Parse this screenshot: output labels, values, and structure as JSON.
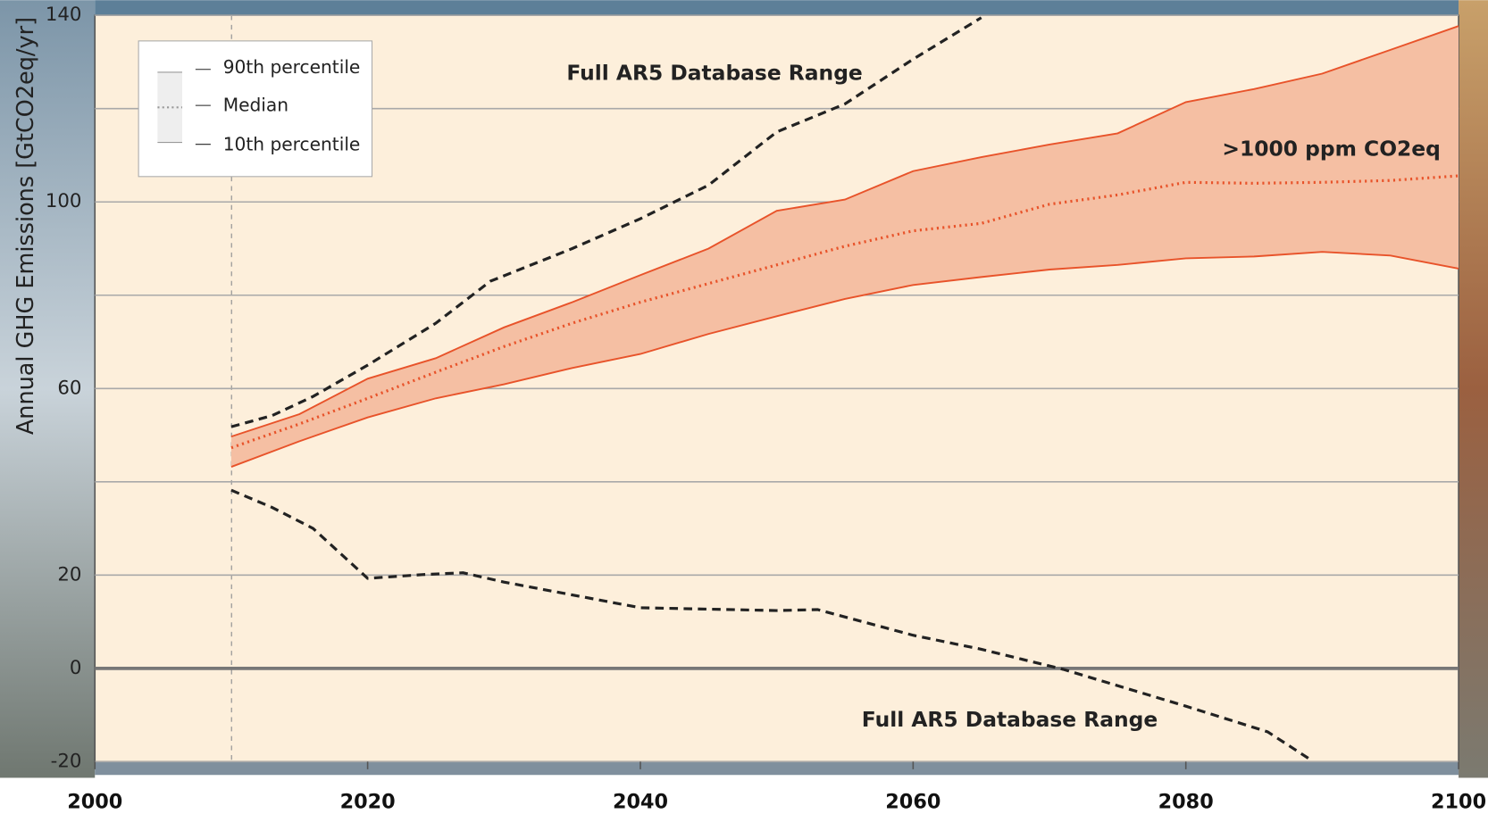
{
  "chart_data": {
    "type": "band",
    "y_label": "Annual GHG Emissions [GtCO2eq/yr]",
    "annotations": [
      "Full AR5 Database Range",
      ">1000 ppm CO2eq",
      "Full AR5 Database Range"
    ],
    "xlim": [
      2000,
      2100
    ],
    "xticks": [
      2000,
      2020,
      2040,
      2060,
      2080,
      2100
    ],
    "ylim": [
      -20,
      140
    ],
    "yticks": [
      -20,
      0,
      20,
      {
        "value": 40,
        "label": null
      },
      60,
      {
        "value": 80,
        "label": null
      },
      100,
      {
        "value": 120,
        "label": null
      },
      140
    ],
    "grid": true,
    "band_color": "#f5bfa3",
    "x": [
      2010,
      2015,
      2020,
      2025,
      2030,
      2035,
      2040,
      2045,
      2050,
      2055,
      2060,
      2065,
      2070,
      2075,
      2080,
      2085,
      2090,
      2095,
      2100
    ],
    "series": [
      {
        "name": "90th percentile",
        "color": "#e8532a",
        "style": "solid",
        "values": [
          49.7,
          54.5,
          62.1,
          66.5,
          73.1,
          78.5,
          84.3,
          90,
          98.1,
          100.5,
          106.6,
          109.6,
          112.3,
          114.7,
          121.4,
          124.2,
          127.5,
          132.6,
          137.7
        ]
      },
      {
        "name": "Median",
        "color": "#e8532a",
        "style": "dotted",
        "values": [
          47.3,
          52.4,
          57.9,
          63.5,
          69,
          74,
          78.5,
          82.5,
          86.5,
          90.5,
          93.8,
          95.4,
          99.5,
          101.5,
          104.2,
          104,
          104.2,
          104.6,
          105.6
        ]
      },
      {
        "name": "10th percentile",
        "color": "#e8532a",
        "style": "solid",
        "values": [
          43.2,
          48.7,
          53.8,
          57.9,
          60.9,
          64.4,
          67.4,
          71.7,
          75.5,
          79.2,
          82.2,
          83.9,
          85.5,
          86.5,
          87.9,
          88.3,
          89.3,
          88.5,
          85.7
        ]
      }
    ],
    "database_range": {
      "color": "#222222",
      "upper": {
        "x": [
          2010,
          2013,
          2016,
          2020,
          2025,
          2029,
          2035,
          2040,
          2045,
          2050,
          2055,
          2060,
          2065
        ],
        "values": [
          51.8,
          54.2,
          58.3,
          65,
          74,
          83,
          90,
          96.4,
          103.6,
          115,
          121,
          130.6,
          139.5
        ]
      },
      "lower": {
        "x": [
          2010,
          2013,
          2016,
          2020,
          2024,
          2027,
          2030,
          2040,
          2050,
          2053,
          2060,
          2065,
          2071,
          2080,
          2086,
          2089
        ],
        "values": [
          38.2,
          34.5,
          30,
          19.3,
          20.1,
          20.5,
          18.5,
          13,
          12.4,
          12.6,
          7.1,
          4.1,
          -0.2,
          -8.1,
          -13.6,
          -19.3
        ]
      }
    }
  }
}
